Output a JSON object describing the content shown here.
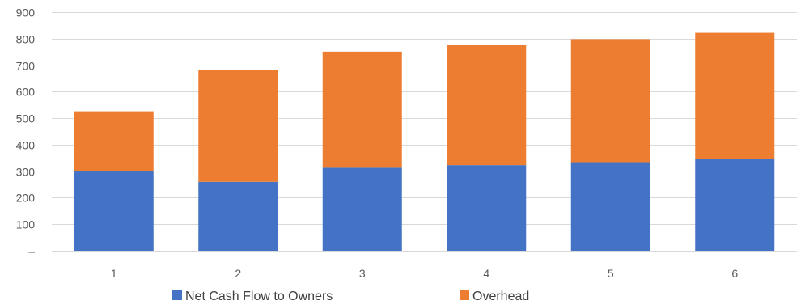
{
  "chart_data": {
    "type": "bar",
    "stacked": true,
    "title": "",
    "xlabel": "",
    "ylabel": "",
    "categories": [
      "1",
      "2",
      "3",
      "4",
      "5",
      "6"
    ],
    "series": [
      {
        "name": "Net Cash Flow to Owners",
        "color": "#4472c4",
        "values": [
          302,
          260,
          313,
          323,
          334,
          345
        ]
      },
      {
        "name": "Overhead",
        "color": "#ed7d31",
        "values": [
          224,
          423,
          438,
          452,
          464,
          477
        ]
      }
    ],
    "ylim": [
      0,
      900
    ],
    "yticks": [
      0,
      100,
      200,
      300,
      400,
      500,
      600,
      700,
      800,
      900
    ],
    "ytick_labels": [
      "–",
      "100",
      "200",
      "300",
      "400",
      "500",
      "600",
      "700",
      "800",
      "900"
    ],
    "grid": true,
    "legend_position": "bottom"
  }
}
